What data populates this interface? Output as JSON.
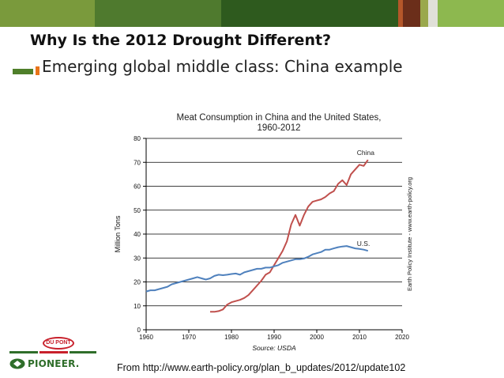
{
  "slide": {
    "title": "Why Is the 2012 Drought Different?",
    "subtitle": "Emerging global middle class: China example",
    "source_note": "From http://www.earth-policy.org/plan_b_updates/2012/update102"
  },
  "theme": {
    "topbar_colors": [
      "#7a9a3c",
      "#4f7a2e",
      "#2e5a1e",
      "#b5572a",
      "#6b2e1a",
      "#9aa84c",
      "#e0e0d8",
      "#8db84f"
    ],
    "accent_green": "#4f7f2a",
    "accent_orange": "#e8741a"
  },
  "logos": {
    "dupont_label": "DU PONT",
    "pioneer_label": "PIONEER."
  },
  "chart_data": {
    "type": "line",
    "title": "Meat Consumption in China and the United States,",
    "subtitle": "1960-2012",
    "xlabel": "Source: USDA",
    "ylabel": "Million Tons",
    "side_note": "Earth Policy Institute - www.earth-policy.org",
    "xlim": [
      1960,
      2020
    ],
    "ylim": [
      0,
      80
    ],
    "xticks": [
      1960,
      1970,
      1980,
      1990,
      2000,
      2010,
      2020
    ],
    "yticks": [
      0,
      10,
      20,
      30,
      40,
      50,
      60,
      70,
      80
    ],
    "grid": true,
    "series": [
      {
        "name": "China",
        "label": "China",
        "color": "#c0504d",
        "x": [
          1975,
          1976,
          1977,
          1978,
          1979,
          1980,
          1981,
          1982,
          1983,
          1984,
          1985,
          1986,
          1987,
          1988,
          1989,
          1990,
          1991,
          1992,
          1993,
          1994,
          1995,
          1996,
          1997,
          1998,
          1999,
          2000,
          2001,
          2002,
          2003,
          2004,
          2005,
          2006,
          2007,
          2008,
          2009,
          2010,
          2011,
          2012
        ],
        "values": [
          7.5,
          7.5,
          7.8,
          8.5,
          10.5,
          11.5,
          12,
          12.5,
          13.3,
          14.5,
          16.5,
          18.5,
          20.5,
          23,
          24,
          27,
          30,
          33,
          37,
          44,
          48,
          43.5,
          48,
          51.5,
          53.5,
          54,
          54.5,
          55.5,
          57,
          58,
          61,
          62.5,
          60.5,
          65,
          67,
          69,
          68.5,
          71
        ]
      },
      {
        "name": "U.S.",
        "label": "U.S.",
        "color": "#4f81bd",
        "x": [
          1960,
          1961,
          1962,
          1963,
          1964,
          1965,
          1966,
          1967,
          1968,
          1969,
          1970,
          1971,
          1972,
          1973,
          1974,
          1975,
          1976,
          1977,
          1978,
          1979,
          1980,
          1981,
          1982,
          1983,
          1984,
          1985,
          1986,
          1987,
          1988,
          1989,
          1990,
          1991,
          1992,
          1993,
          1994,
          1995,
          1996,
          1997,
          1998,
          1999,
          2000,
          2001,
          2002,
          2003,
          2004,
          2005,
          2006,
          2007,
          2008,
          2009,
          2010,
          2011,
          2012
        ],
        "values": [
          16,
          16.5,
          16.5,
          17,
          17.5,
          18,
          19,
          19.5,
          20,
          20.5,
          21,
          21.5,
          22,
          21.5,
          21,
          21.5,
          22.5,
          23,
          22.8,
          23,
          23.3,
          23.5,
          23,
          24,
          24.5,
          25,
          25.5,
          25.5,
          26,
          26,
          26.5,
          27,
          28,
          28.5,
          29,
          29.5,
          29.5,
          29.8,
          30.5,
          31.5,
          32,
          32.5,
          33.5,
          33.5,
          34,
          34.5,
          34.8,
          35,
          34.5,
          34,
          33.8,
          33.5,
          33
        ]
      }
    ]
  }
}
